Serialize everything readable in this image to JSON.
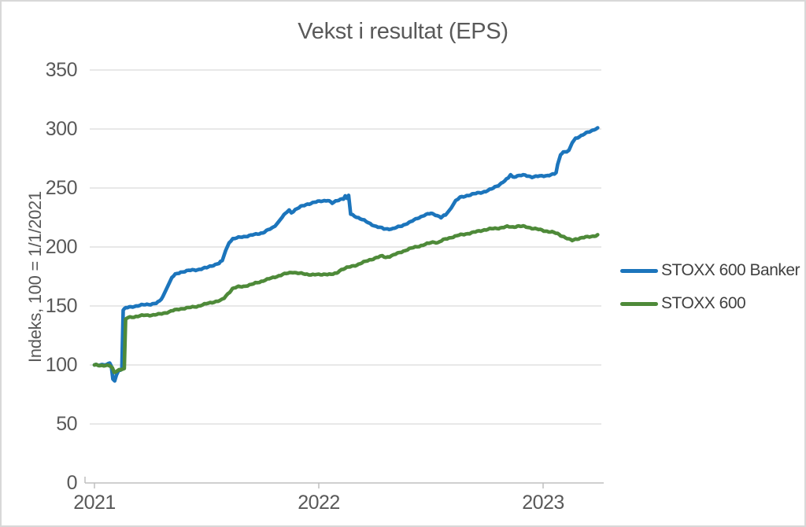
{
  "chart": {
    "title": "Vekst i resultat (EPS)",
    "y_axis_title": "Indeks, 100 = 1/1/2021",
    "y_ticks": [
      "350",
      "300",
      "250",
      "200",
      "150",
      "100",
      "50",
      "0"
    ],
    "x_ticks": [
      "2021",
      "2022",
      "2023"
    ],
    "legend": [
      {
        "label": "STOXX 600 Banker",
        "color": "#1C75BC"
      },
      {
        "label": "STOXX 600",
        "color": "#4E8A39"
      }
    ]
  },
  "colors": {
    "title_text": "#595959",
    "axis_text": "#595959",
    "legend_text": "#404040",
    "gridline": "#D9D9D9",
    "axis_line": "#BFBFBF",
    "border": "#D8D8D8",
    "series_blue": "#1C75BC",
    "series_green": "#4E8A39"
  },
  "chart_data": {
    "type": "line",
    "title": "Vekst i resultat (EPS)",
    "xlabel": "",
    "ylabel": "Indeks, 100 = 1/1/2021",
    "x_unit": "years since 2021-01-01",
    "xlim": [
      0,
      2.27
    ],
    "ylim": [
      0,
      350
    ],
    "y_tick_step": 50,
    "x_tick_values": [
      0,
      1,
      2
    ],
    "x_tick_labels": [
      "2021",
      "2022",
      "2023"
    ],
    "grid": true,
    "legend_position": "right",
    "series": [
      {
        "name": "STOXX 600 Banker",
        "color": "#1C75BC",
        "points": [
          [
            0.0,
            100.0
          ],
          [
            0.02,
            99.6
          ],
          [
            0.04,
            100.4
          ],
          [
            0.055,
            100.0
          ],
          [
            0.068,
            101.5
          ],
          [
            0.075,
            99.0
          ],
          [
            0.082,
            87.5
          ],
          [
            0.09,
            86.5
          ],
          [
            0.098,
            92.0
          ],
          [
            0.108,
            95.5
          ],
          [
            0.122,
            96.5
          ],
          [
            0.128,
            146.5
          ],
          [
            0.14,
            148.5
          ],
          [
            0.17,
            149.5
          ],
          [
            0.21,
            150.5
          ],
          [
            0.25,
            151.5
          ],
          [
            0.275,
            152.5
          ],
          [
            0.29,
            154.0
          ],
          [
            0.305,
            158.0
          ],
          [
            0.325,
            166.0
          ],
          [
            0.345,
            174.0
          ],
          [
            0.36,
            176.5
          ],
          [
            0.385,
            178.5
          ],
          [
            0.42,
            180.0
          ],
          [
            0.46,
            181.0
          ],
          [
            0.5,
            182.5
          ],
          [
            0.53,
            184.5
          ],
          [
            0.555,
            186.0
          ],
          [
            0.57,
            188.5
          ],
          [
            0.585,
            197.0
          ],
          [
            0.6,
            204.0
          ],
          [
            0.617,
            207.0
          ],
          [
            0.65,
            208.5
          ],
          [
            0.69,
            209.5
          ],
          [
            0.72,
            210.5
          ],
          [
            0.75,
            212.0
          ],
          [
            0.775,
            214.5
          ],
          [
            0.795,
            216.5
          ],
          [
            0.815,
            220.0
          ],
          [
            0.838,
            225.5
          ],
          [
            0.858,
            229.5
          ],
          [
            0.868,
            231.0
          ],
          [
            0.878,
            229.0
          ],
          [
            0.895,
            231.5
          ],
          [
            0.92,
            234.0
          ],
          [
            0.95,
            236.5
          ],
          [
            0.98,
            238.0
          ],
          [
            1.01,
            239.0
          ],
          [
            1.04,
            239.5
          ],
          [
            1.06,
            236.8
          ],
          [
            1.075,
            238.5
          ],
          [
            1.095,
            240.5
          ],
          [
            1.11,
            241.0
          ],
          [
            1.118,
            243.5
          ],
          [
            1.125,
            240.8
          ],
          [
            1.133,
            243.8
          ],
          [
            1.142,
            228.0
          ],
          [
            1.16,
            226.5
          ],
          [
            1.185,
            224.0
          ],
          [
            1.22,
            220.5
          ],
          [
            1.255,
            217.2
          ],
          [
            1.29,
            215.6
          ],
          [
            1.33,
            215.5
          ],
          [
            1.37,
            218.0
          ],
          [
            1.41,
            221.0
          ],
          [
            1.44,
            224.5
          ],
          [
            1.47,
            227.0
          ],
          [
            1.5,
            228.7
          ],
          [
            1.52,
            227.5
          ],
          [
            1.545,
            224.8
          ],
          [
            1.565,
            227.0
          ],
          [
            1.59,
            233.0
          ],
          [
            1.61,
            239.0
          ],
          [
            1.63,
            242.0
          ],
          [
            1.66,
            243.8
          ],
          [
            1.7,
            245.3
          ],
          [
            1.73,
            246.3
          ],
          [
            1.745,
            247.0
          ],
          [
            1.77,
            249.0
          ],
          [
            1.8,
            252.5
          ],
          [
            1.82,
            255.0
          ],
          [
            1.845,
            258.5
          ],
          [
            1.855,
            261.5
          ],
          [
            1.865,
            259.3
          ],
          [
            1.885,
            260.2
          ],
          [
            1.92,
            260.6
          ],
          [
            1.95,
            259.4
          ],
          [
            1.985,
            260.2
          ],
          [
            2.02,
            260.8
          ],
          [
            2.05,
            261.6
          ],
          [
            2.058,
            263.0
          ],
          [
            2.065,
            270.0
          ],
          [
            2.078,
            278.5
          ],
          [
            2.09,
            280.3
          ],
          [
            2.105,
            280.8
          ],
          [
            2.115,
            282.0
          ],
          [
            2.13,
            288.5
          ],
          [
            2.145,
            292.3
          ],
          [
            2.17,
            294.6
          ],
          [
            2.2,
            297.2
          ],
          [
            2.22,
            298.8
          ],
          [
            2.235,
            300.2
          ],
          [
            2.243,
            301.0
          ]
        ]
      },
      {
        "name": "STOXX 600",
        "color": "#4E8A39",
        "points": [
          [
            0.0,
            100.0
          ],
          [
            0.025,
            99.4
          ],
          [
            0.05,
            99.6
          ],
          [
            0.07,
            99.0
          ],
          [
            0.08,
            97.0
          ],
          [
            0.088,
            93.6
          ],
          [
            0.096,
            94.8
          ],
          [
            0.11,
            96.2
          ],
          [
            0.125,
            96.8
          ],
          [
            0.133,
            97.0
          ],
          [
            0.139,
            138.8
          ],
          [
            0.15,
            140.3
          ],
          [
            0.185,
            141.0
          ],
          [
            0.22,
            141.8
          ],
          [
            0.255,
            142.3
          ],
          [
            0.285,
            143.0
          ],
          [
            0.315,
            144.3
          ],
          [
            0.35,
            146.0
          ],
          [
            0.385,
            147.4
          ],
          [
            0.42,
            148.5
          ],
          [
            0.455,
            149.8
          ],
          [
            0.49,
            151.5
          ],
          [
            0.525,
            153.0
          ],
          [
            0.55,
            154.0
          ],
          [
            0.565,
            154.6
          ],
          [
            0.578,
            156.5
          ],
          [
            0.595,
            160.5
          ],
          [
            0.615,
            164.8
          ],
          [
            0.635,
            166.2
          ],
          [
            0.665,
            166.8
          ],
          [
            0.7,
            168.0
          ],
          [
            0.735,
            170.2
          ],
          [
            0.77,
            172.5
          ],
          [
            0.805,
            174.8
          ],
          [
            0.84,
            176.8
          ],
          [
            0.87,
            178.0
          ],
          [
            0.885,
            178.6
          ],
          [
            0.9,
            177.8
          ],
          [
            0.93,
            177.2
          ],
          [
            0.965,
            176.8
          ],
          [
            1.0,
            176.6
          ],
          [
            1.03,
            177.0
          ],
          [
            1.055,
            176.4
          ],
          [
            1.08,
            177.6
          ],
          [
            1.092,
            180.0
          ],
          [
            1.11,
            181.6
          ],
          [
            1.14,
            183.4
          ],
          [
            1.17,
            185.0
          ],
          [
            1.2,
            187.0
          ],
          [
            1.235,
            189.4
          ],
          [
            1.265,
            191.3
          ],
          [
            1.283,
            192.4
          ],
          [
            1.298,
            191.4
          ],
          [
            1.325,
            192.8
          ],
          [
            1.36,
            195.2
          ],
          [
            1.395,
            197.6
          ],
          [
            1.43,
            199.8
          ],
          [
            1.465,
            201.8
          ],
          [
            1.5,
            203.8
          ],
          [
            1.515,
            204.4
          ],
          [
            1.53,
            203.6
          ],
          [
            1.555,
            205.8
          ],
          [
            1.59,
            208.0
          ],
          [
            1.625,
            210.0
          ],
          [
            1.655,
            211.3
          ],
          [
            1.69,
            212.4
          ],
          [
            1.73,
            214.0
          ],
          [
            1.77,
            215.3
          ],
          [
            1.81,
            216.4
          ],
          [
            1.84,
            217.4
          ],
          [
            1.865,
            217.0
          ],
          [
            1.885,
            217.5
          ],
          [
            1.905,
            217.3
          ],
          [
            1.925,
            216.8
          ],
          [
            1.95,
            216.0
          ],
          [
            1.98,
            215.0
          ],
          [
            2.01,
            213.8
          ],
          [
            2.04,
            212.6
          ],
          [
            2.065,
            211.0
          ],
          [
            2.085,
            209.2
          ],
          [
            2.1,
            207.8
          ],
          [
            2.115,
            206.4
          ],
          [
            2.13,
            205.6
          ],
          [
            2.145,
            206.8
          ],
          [
            2.165,
            207.8
          ],
          [
            2.19,
            208.4
          ],
          [
            2.215,
            208.8
          ],
          [
            2.235,
            209.6
          ],
          [
            2.243,
            210.4
          ]
        ]
      }
    ]
  }
}
